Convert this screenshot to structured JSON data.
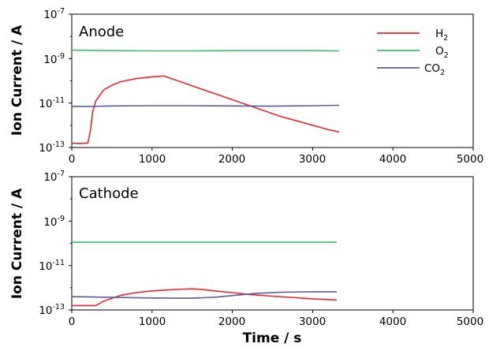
{
  "chart_data": [
    {
      "type": "line",
      "panel_label": "Anode",
      "ylabel": "Ion Current / A",
      "xlabel": "",
      "xlim": [
        0,
        5000
      ],
      "ylim_log10": [
        -13,
        -7
      ],
      "yscale": "log",
      "xticks": [
        "0",
        "1000",
        "2000",
        "3000",
        "4000",
        "5000"
      ],
      "yticks": [
        {
          "base": "10",
          "exp": "-13",
          "value": -13
        },
        {
          "base": "10",
          "exp": "-11",
          "value": -11
        },
        {
          "base": "10",
          "exp": "-9",
          "value": -9
        },
        {
          "base": "10",
          "exp": "-7",
          "value": -7
        }
      ],
      "legend": {
        "placement": "top-right",
        "entries": [
          {
            "base": "H",
            "sub": "2",
            "color": "#e8262a"
          },
          {
            "base": "O",
            "sub": "2",
            "color": "#3dbf6e"
          },
          {
            "base": "CO",
            "sub": "2",
            "color": "#5b5b9b"
          }
        ]
      },
      "series": [
        {
          "color": "#e8262a",
          "x": [
            0,
            100,
            200,
            230,
            260,
            300,
            400,
            500,
            600,
            800,
            1000,
            1150,
            1200,
            1400,
            1600,
            1800,
            2000,
            2200,
            2400,
            2600,
            2800,
            3000,
            3200,
            3330
          ],
          "log10": [
            -12.8,
            -12.82,
            -12.8,
            -12.3,
            -11.4,
            -10.9,
            -10.4,
            -10.2,
            -10.05,
            -9.9,
            -9.82,
            -9.78,
            -9.85,
            -10.1,
            -10.35,
            -10.6,
            -10.85,
            -11.1,
            -11.35,
            -11.6,
            -11.8,
            -12.0,
            -12.2,
            -12.3
          ]
        },
        {
          "color": "#3dbf6e",
          "x": [
            0,
            500,
            1000,
            1500,
            2000,
            2500,
            3000,
            3330
          ],
          "log10": [
            -8.62,
            -8.64,
            -8.65,
            -8.65,
            -8.64,
            -8.64,
            -8.64,
            -8.65
          ]
        },
        {
          "color": "#5b5b9b",
          "x": [
            0,
            250,
            500,
            1000,
            1500,
            2000,
            2500,
            3000,
            3330
          ],
          "log10": [
            -11.15,
            -11.15,
            -11.13,
            -11.12,
            -11.12,
            -11.13,
            -11.14,
            -11.12,
            -11.1
          ]
        }
      ]
    },
    {
      "type": "line",
      "panel_label": "Cathode",
      "ylabel": "Ion Current / A",
      "xlabel": "Time / s",
      "xlim": [
        0,
        5000
      ],
      "ylim_log10": [
        -13,
        -7
      ],
      "yscale": "log",
      "xticks": [
        "0",
        "1000",
        "2000",
        "3000",
        "4000",
        "5000"
      ],
      "yticks": [
        {
          "base": "10",
          "exp": "-13",
          "value": -13
        },
        {
          "base": "10",
          "exp": "-11",
          "value": -11
        },
        {
          "base": "10",
          "exp": "-9",
          "value": -9
        },
        {
          "base": "10",
          "exp": "-7",
          "value": -7
        }
      ],
      "series": [
        {
          "color": "#e8262a",
          "x": [
            0,
            300,
            400,
            600,
            800,
            1000,
            1200,
            1400,
            1500,
            1600,
            1800,
            2000,
            2200,
            2500,
            2800,
            3000,
            3300
          ],
          "log10": [
            -12.8,
            -12.8,
            -12.6,
            -12.35,
            -12.22,
            -12.14,
            -12.1,
            -12.06,
            -12.05,
            -12.07,
            -12.15,
            -12.22,
            -12.3,
            -12.38,
            -12.45,
            -12.5,
            -12.55
          ]
        },
        {
          "color": "#3dbf6e",
          "x": [
            0,
            1000,
            2000,
            3000,
            3300
          ],
          "log10": [
            -9.95,
            -9.95,
            -9.95,
            -9.95,
            -9.95
          ]
        },
        {
          "color": "#5b5b9b",
          "x": [
            0,
            500,
            1000,
            1500,
            1800,
            2000,
            2300,
            2600,
            3000,
            3300
          ],
          "log10": [
            -12.4,
            -12.43,
            -12.46,
            -12.47,
            -12.42,
            -12.35,
            -12.25,
            -12.2,
            -12.18,
            -12.18
          ]
        }
      ]
    }
  ]
}
